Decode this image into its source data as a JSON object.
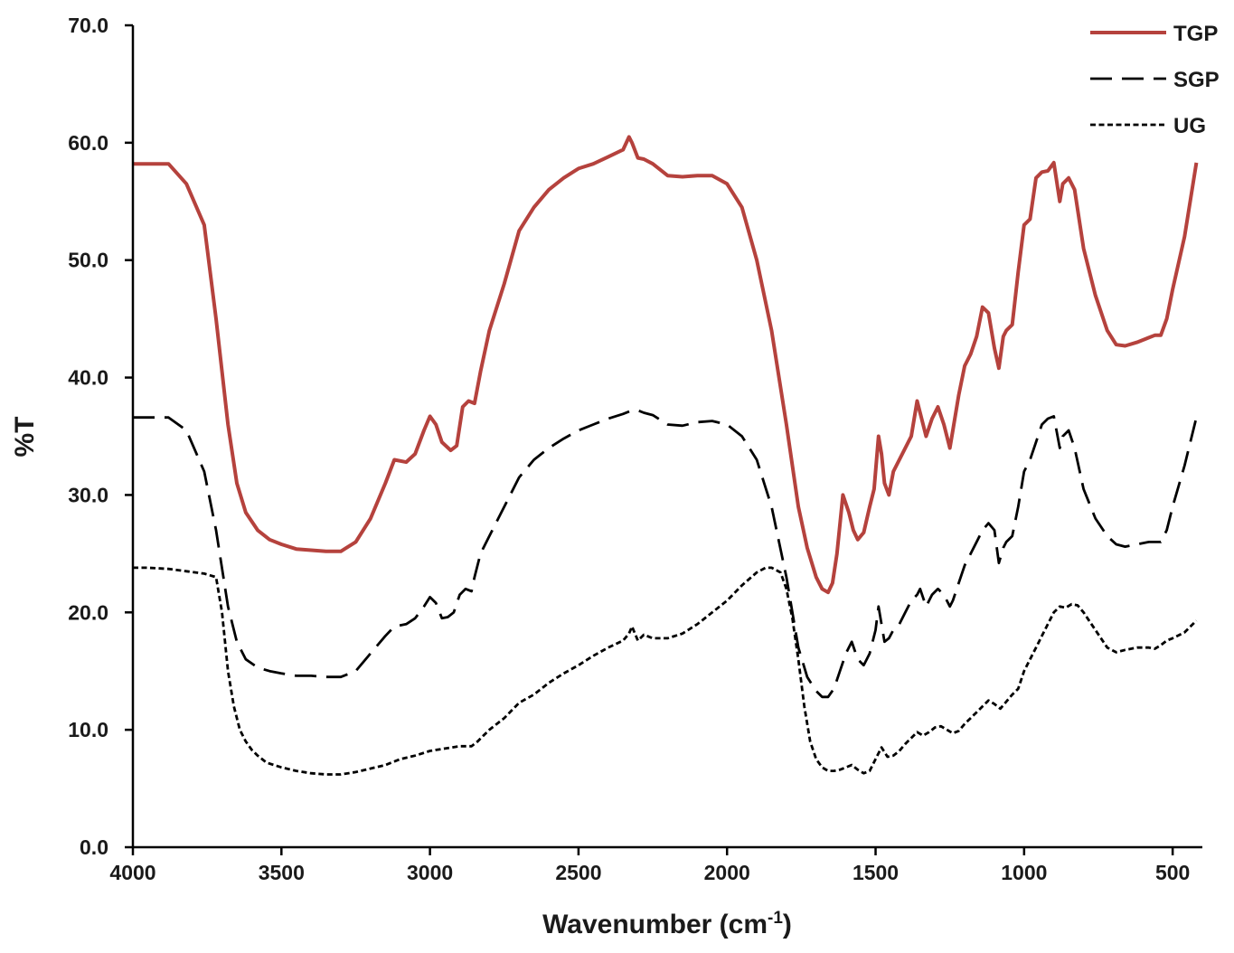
{
  "chart_data": {
    "type": "line",
    "xlabel": "Wavenumber (cm",
    "xlabel_sup": "-1",
    "xlabel_end": ")",
    "ylabel": "%T",
    "xlim": [
      4000,
      400
    ],
    "ylim": [
      0,
      70
    ],
    "x_reversed": true,
    "grid": false,
    "legend_position": "top-right",
    "x_ticks": [
      4000,
      3500,
      3000,
      2500,
      2000,
      1500,
      1000,
      500
    ],
    "x_tick_labels": [
      "4000",
      "3500",
      "3000",
      "2500",
      "2000",
      "1500",
      "1000",
      "500"
    ],
    "y_ticks": [
      0,
      10,
      20,
      30,
      40,
      50,
      60,
      70
    ],
    "y_tick_labels": [
      "0.0",
      "10.0",
      "20.0",
      "30.0",
      "40.0",
      "50.0",
      "60.0",
      "70.0"
    ],
    "series": [
      {
        "name": "TGP",
        "color": "#b5423d",
        "dash": "solid",
        "x": [
          4000,
          3950,
          3880,
          3820,
          3760,
          3720,
          3680,
          3650,
          3620,
          3580,
          3540,
          3500,
          3450,
          3400,
          3350,
          3300,
          3250,
          3200,
          3150,
          3120,
          3080,
          3050,
          3020,
          3000,
          2980,
          2960,
          2930,
          2910,
          2890,
          2870,
          2850,
          2830,
          2800,
          2750,
          2700,
          2650,
          2600,
          2550,
          2500,
          2450,
          2400,
          2350,
          2330,
          2320,
          2300,
          2280,
          2250,
          2200,
          2150,
          2100,
          2050,
          2000,
          1950,
          1900,
          1850,
          1800,
          1760,
          1730,
          1700,
          1680,
          1660,
          1645,
          1630,
          1610,
          1590,
          1575,
          1560,
          1540,
          1520,
          1505,
          1490,
          1480,
          1470,
          1455,
          1440,
          1420,
          1400,
          1380,
          1360,
          1350,
          1330,
          1310,
          1290,
          1270,
          1250,
          1240,
          1220,
          1200,
          1180,
          1160,
          1140,
          1120,
          1100,
          1085,
          1070,
          1060,
          1040,
          1020,
          1000,
          980,
          960,
          940,
          920,
          900,
          880,
          870,
          850,
          830,
          800,
          760,
          720,
          690,
          660,
          620,
          580,
          560,
          540,
          520,
          500,
          460,
          420
        ],
        "y": [
          58.2,
          58.2,
          58.2,
          56.5,
          53.0,
          45.0,
          36.0,
          31.0,
          28.5,
          27.0,
          26.2,
          25.8,
          25.4,
          25.3,
          25.2,
          25.2,
          26.0,
          28.0,
          31.0,
          33.0,
          32.8,
          33.5,
          35.5,
          36.7,
          36.0,
          34.5,
          33.8,
          34.2,
          37.5,
          38.0,
          37.8,
          40.5,
          44.0,
          48.0,
          52.5,
          54.5,
          56.0,
          57.0,
          57.8,
          58.2,
          58.8,
          59.4,
          60.5,
          60.0,
          58.7,
          58.6,
          58.2,
          57.2,
          57.1,
          57.2,
          57.2,
          56.5,
          54.5,
          50.0,
          44.0,
          36.0,
          29.0,
          25.5,
          23.0,
          22.0,
          21.7,
          22.5,
          25.0,
          30.0,
          28.5,
          27.0,
          26.2,
          26.8,
          29.0,
          30.5,
          35.0,
          33.5,
          31.0,
          30.0,
          32.0,
          33.0,
          34.0,
          35.0,
          38.0,
          37.0,
          35.0,
          36.5,
          37.5,
          36.0,
          34.0,
          35.5,
          38.5,
          41.0,
          42.0,
          43.5,
          46.0,
          45.5,
          42.5,
          40.8,
          43.5,
          44.0,
          44.5,
          49.0,
          53.0,
          53.5,
          57.0,
          57.5,
          57.6,
          58.3,
          55.0,
          56.5,
          57.0,
          56.0,
          51.0,
          47.0,
          44.0,
          42.8,
          42.7,
          43.0,
          43.4,
          43.6,
          43.6,
          45.0,
          47.5,
          52.0,
          58.3
        ]
      },
      {
        "name": "SGP",
        "color": "#000000",
        "dash": "long",
        "x": [
          4000,
          3950,
          3880,
          3820,
          3760,
          3720,
          3680,
          3650,
          3620,
          3580,
          3540,
          3500,
          3450,
          3400,
          3350,
          3300,
          3250,
          3200,
          3150,
          3120,
          3080,
          3050,
          3020,
          3000,
          2980,
          2960,
          2940,
          2920,
          2900,
          2880,
          2860,
          2850,
          2830,
          2800,
          2750,
          2700,
          2650,
          2600,
          2550,
          2500,
          2450,
          2400,
          2350,
          2330,
          2320,
          2300,
          2280,
          2250,
          2200,
          2150,
          2100,
          2050,
          2000,
          1950,
          1900,
          1850,
          1800,
          1760,
          1730,
          1700,
          1680,
          1660,
          1640,
          1620,
          1600,
          1580,
          1560,
          1540,
          1520,
          1500,
          1490,
          1480,
          1470,
          1455,
          1440,
          1420,
          1400,
          1380,
          1360,
          1350,
          1330,
          1310,
          1290,
          1270,
          1250,
          1240,
          1220,
          1200,
          1180,
          1160,
          1140,
          1120,
          1100,
          1085,
          1070,
          1060,
          1040,
          1020,
          1000,
          980,
          960,
          940,
          920,
          900,
          880,
          870,
          850,
          830,
          800,
          760,
          720,
          690,
          660,
          620,
          580,
          560,
          540,
          520,
          500,
          460,
          420
        ],
        "y": [
          36.6,
          36.6,
          36.6,
          35.5,
          32.0,
          27.0,
          20.5,
          17.5,
          16.0,
          15.3,
          15.0,
          14.8,
          14.6,
          14.6,
          14.5,
          14.5,
          15.0,
          16.5,
          18.0,
          18.8,
          19.0,
          19.5,
          20.5,
          21.3,
          20.8,
          19.5,
          19.6,
          20.0,
          21.5,
          22.0,
          21.8,
          23.0,
          25.0,
          26.5,
          29.0,
          31.5,
          33.0,
          34.0,
          34.8,
          35.5,
          36.0,
          36.5,
          36.9,
          37.1,
          37.2,
          37.2,
          37.0,
          36.8,
          36.0,
          35.9,
          36.2,
          36.3,
          36.0,
          35.0,
          33.0,
          29.0,
          23.0,
          17.0,
          14.5,
          13.3,
          12.8,
          12.8,
          13.5,
          15.0,
          16.5,
          17.5,
          16.0,
          15.5,
          16.5,
          18.5,
          20.5,
          19.0,
          17.5,
          17.8,
          18.5,
          19.0,
          20.0,
          21.0,
          21.5,
          22.0,
          20.5,
          21.5,
          22.0,
          21.5,
          20.5,
          21.0,
          22.5,
          24.0,
          25.0,
          26.0,
          27.0,
          27.6,
          27.0,
          24.2,
          25.5,
          26.0,
          26.5,
          29.0,
          32.0,
          33.0,
          34.5,
          36.0,
          36.5,
          36.7,
          34.0,
          35.0,
          35.5,
          34.0,
          30.5,
          28.0,
          26.5,
          25.8,
          25.6,
          25.8,
          26.0,
          26.0,
          26.0,
          27.0,
          29.0,
          32.5,
          36.6
        ]
      },
      {
        "name": "UG",
        "color": "#000000",
        "dash": "short",
        "x": [
          4000,
          3950,
          3880,
          3820,
          3760,
          3720,
          3700,
          3680,
          3660,
          3640,
          3620,
          3600,
          3580,
          3550,
          3500,
          3450,
          3400,
          3350,
          3300,
          3250,
          3200,
          3150,
          3100,
          3050,
          3000,
          2950,
          2900,
          2860,
          2840,
          2800,
          2750,
          2700,
          2650,
          2600,
          2550,
          2500,
          2450,
          2400,
          2350,
          2330,
          2320,
          2300,
          2280,
          2250,
          2200,
          2150,
          2100,
          2050,
          2000,
          1950,
          1900,
          1870,
          1850,
          1820,
          1800,
          1780,
          1760,
          1740,
          1720,
          1700,
          1680,
          1660,
          1640,
          1620,
          1600,
          1580,
          1560,
          1540,
          1520,
          1500,
          1480,
          1460,
          1440,
          1420,
          1400,
          1380,
          1360,
          1340,
          1320,
          1300,
          1280,
          1260,
          1240,
          1220,
          1200,
          1180,
          1160,
          1140,
          1120,
          1100,
          1080,
          1060,
          1040,
          1020,
          1000,
          980,
          960,
          940,
          920,
          900,
          880,
          860,
          840,
          820,
          800,
          760,
          720,
          690,
          660,
          620,
          580,
          560,
          540,
          520,
          500,
          460,
          420
        ],
        "y": [
          23.8,
          23.8,
          23.7,
          23.5,
          23.3,
          23.0,
          20.0,
          15.0,
          12.0,
          10.0,
          9.0,
          8.3,
          7.8,
          7.2,
          6.8,
          6.5,
          6.3,
          6.2,
          6.2,
          6.4,
          6.7,
          7.0,
          7.5,
          7.8,
          8.2,
          8.4,
          8.6,
          8.6,
          9.0,
          10.0,
          11.0,
          12.3,
          13.0,
          14.0,
          14.8,
          15.5,
          16.3,
          17.0,
          17.6,
          18.2,
          18.8,
          17.6,
          18.1,
          17.8,
          17.8,
          18.2,
          19.0,
          20.0,
          21.0,
          22.3,
          23.4,
          23.8,
          23.8,
          23.4,
          22.0,
          19.5,
          16.0,
          12.0,
          9.0,
          7.5,
          6.8,
          6.5,
          6.5,
          6.6,
          6.8,
          7.0,
          6.6,
          6.3,
          6.5,
          7.5,
          8.5,
          7.7,
          7.8,
          8.2,
          8.8,
          9.3,
          9.8,
          9.5,
          9.8,
          10.2,
          10.3,
          10.0,
          9.7,
          9.9,
          10.5,
          11.0,
          11.5,
          12.0,
          12.5,
          12.2,
          11.8,
          12.4,
          13.0,
          13.5,
          15.0,
          16.0,
          17.0,
          18.0,
          19.0,
          20.0,
          20.5,
          20.4,
          20.7,
          20.6,
          20.0,
          18.5,
          17.0,
          16.6,
          16.8,
          17.0,
          17.0,
          16.9,
          17.2,
          17.6,
          17.8,
          18.3,
          19.3
        ]
      }
    ]
  }
}
